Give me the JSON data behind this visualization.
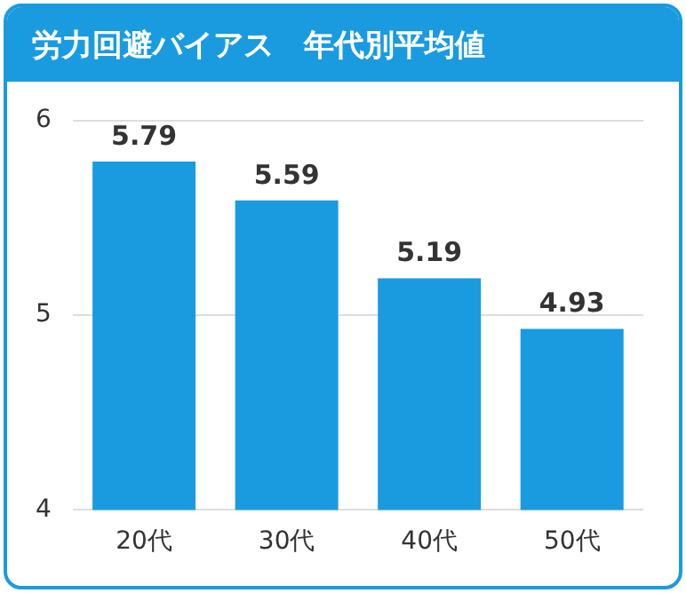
{
  "chart_data": {
    "type": "bar",
    "title": "労力回避バイアス　年代別平均値",
    "categories": [
      "20代",
      "30代",
      "40代",
      "50代"
    ],
    "values": [
      5.79,
      5.59,
      5.19,
      4.93
    ],
    "color": "#1a9be0",
    "ylim": [
      4,
      6
    ],
    "yticks": [
      4,
      5,
      6
    ],
    "grid": "y",
    "data_labels": true,
    "legend": false
  }
}
